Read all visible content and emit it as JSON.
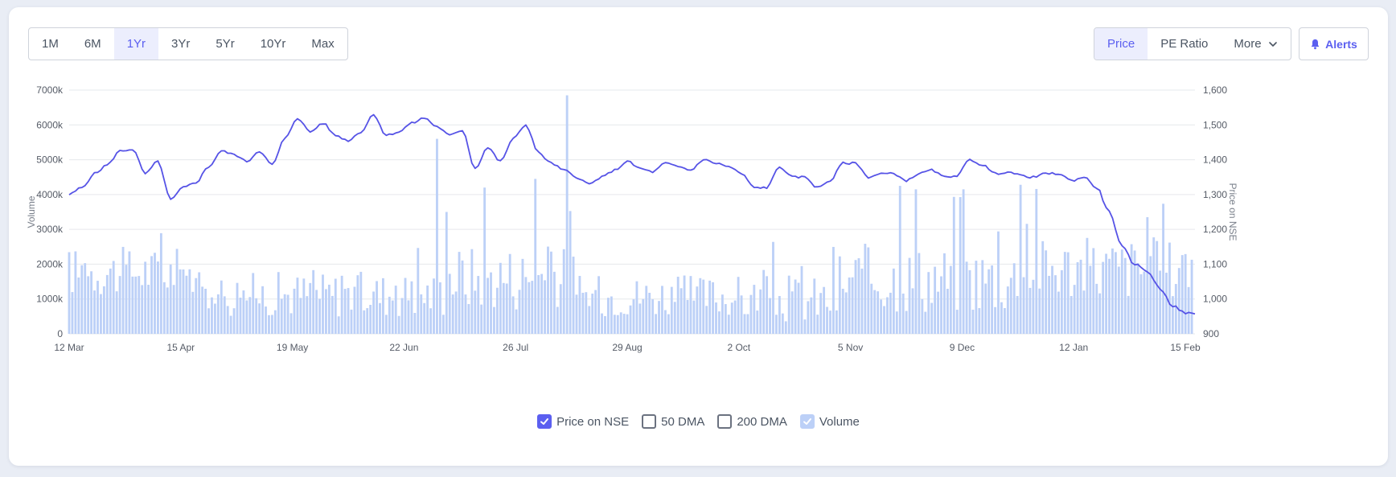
{
  "controls": {
    "ranges": [
      "1M",
      "6M",
      "1Yr",
      "3Yr",
      "5Yr",
      "10Yr",
      "Max"
    ],
    "active_range": "1Yr",
    "metrics": [
      "Price",
      "PE Ratio"
    ],
    "active_metric": "Price",
    "more_label": "More",
    "alerts_label": "Alerts"
  },
  "colors": {
    "accent": "#5b5ff0",
    "price_line": "#5653e6",
    "volume_bar": "#bcd0f7",
    "grid": "#e6e8ec"
  },
  "legend": [
    {
      "label": "Price on NSE",
      "checked": true,
      "style": "on"
    },
    {
      "label": "50 DMA",
      "checked": false,
      "style": "off"
    },
    {
      "label": "200 DMA",
      "checked": false,
      "style": "off"
    },
    {
      "label": "Volume",
      "checked": true,
      "style": "vol"
    }
  ],
  "chart_data": {
    "type": "line",
    "x_tick_labels": [
      "12 Mar",
      "15 Apr",
      "19 May",
      "22 Jun",
      "26 Jul",
      "29 Aug",
      "2 Oct",
      "5 Nov",
      "9 Dec",
      "12 Jan",
      "15 Feb"
    ],
    "y_left": {
      "label": "Volume",
      "ticks": [
        "0",
        "1000k",
        "2000k",
        "3000k",
        "4000k",
        "5000k",
        "6000k",
        "7000k"
      ],
      "range": [
        0,
        7000000
      ]
    },
    "y_right": {
      "label": "Price on NSE",
      "ticks": [
        "900",
        "1,000",
        "1,100",
        "1,200",
        "1,300",
        "1,400",
        "1,500",
        "1,600"
      ],
      "range": [
        900,
        1600
      ]
    },
    "grid": true,
    "legend_position": "bottom",
    "price_series": {
      "name": "Price on NSE",
      "x_day": [
        0,
        4,
        8,
        12,
        16,
        20,
        24,
        28,
        32,
        36,
        40,
        44,
        48,
        52,
        56,
        60,
        64,
        68,
        72,
        76,
        80,
        84,
        88,
        92,
        96,
        100,
        104,
        108,
        112,
        116,
        120,
        124,
        128,
        132,
        136,
        140,
        144,
        148,
        152,
        156,
        160,
        164,
        168,
        172,
        176,
        180,
        184,
        188,
        192,
        196,
        200,
        204,
        208,
        212,
        216,
        220,
        224,
        228,
        232,
        236,
        240,
        244,
        248,
        252,
        256,
        260,
        264,
        268,
        272,
        276,
        280,
        284,
        288,
        292,
        296,
        300,
        304,
        308,
        312,
        316,
        320,
        324,
        328,
        332,
        336,
        340,
        344,
        348,
        352
      ],
      "price": [
        1300,
        1320,
        1360,
        1385,
        1425,
        1430,
        1360,
        1395,
        1285,
        1320,
        1335,
        1380,
        1425,
        1415,
        1395,
        1425,
        1385,
        1460,
        1520,
        1480,
        1505,
        1470,
        1455,
        1480,
        1530,
        1470,
        1480,
        1505,
        1520,
        1495,
        1470,
        1485,
        1375,
        1435,
        1395,
        1460,
        1500,
        1420,
        1390,
        1370,
        1350,
        1330,
        1350,
        1370,
        1395,
        1375,
        1365,
        1390,
        1380,
        1370,
        1400,
        1390,
        1380,
        1360,
        1320,
        1320,
        1380,
        1350,
        1350,
        1320,
        1340,
        1390,
        1390,
        1350,
        1360,
        1360,
        1340,
        1360,
        1370,
        1350,
        1355,
        1400,
        1385,
        1360,
        1365,
        1355,
        1350,
        1360,
        1360,
        1340,
        1350,
        1320,
        1250,
        1150,
        1100,
        1080,
        1030,
        980,
        960
      ],
      "last_price": 957
    },
    "volume_series": {
      "name": "Volume",
      "notes": "daily volume bars, ~1000k-2500k typical with spikes",
      "spikes": [
        {
          "day": 116,
          "value": 5600000
        },
        {
          "day": 157,
          "value": 6850000
        },
        {
          "day": 147,
          "value": 4450000
        },
        {
          "day": 131,
          "value": 4200000
        },
        {
          "day": 119,
          "value": 3500000
        },
        {
          "day": 262,
          "value": 4250000
        },
        {
          "day": 267,
          "value": 4150000
        },
        {
          "day": 300,
          "value": 4280000
        },
        {
          "day": 305,
          "value": 4160000
        },
        {
          "day": 282,
          "value": 4150000
        },
        {
          "day": 340,
          "value": 3350000
        }
      ]
    }
  }
}
